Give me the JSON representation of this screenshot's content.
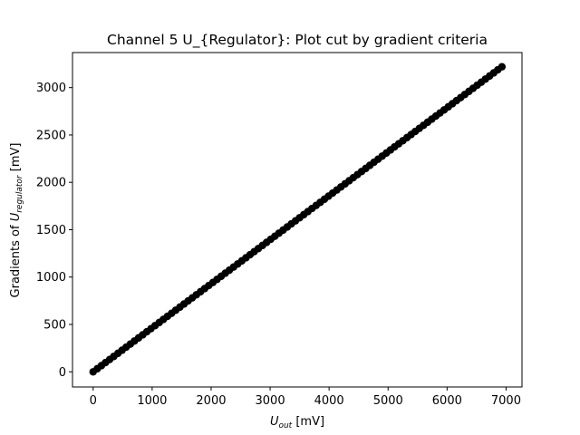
{
  "chart_data": {
    "type": "scatter",
    "title": "Channel 5 U_{Regulator}: Plot cut by gradient criteria",
    "xlabel": {
      "symbol": "U",
      "sub": "out",
      "unit": " [mV]"
    },
    "ylabel": {
      "prefix": "Gradients of ",
      "symbol": "U",
      "sub": "regulator",
      "unit": " [mV]"
    },
    "xlim": [
      -350,
      7270
    ],
    "ylim": [
      -160,
      3370
    ],
    "xticks": [
      0,
      1000,
      2000,
      3000,
      4000,
      5000,
      6000,
      7000
    ],
    "yticks": [
      0,
      500,
      1000,
      1500,
      2000,
      2500,
      3000
    ],
    "grid": false,
    "marker_color": "#000000",
    "line_color": "#000000",
    "series": [
      {
        "x_start": 0,
        "x_end": 6920,
        "x_step": 70,
        "y_start": 0,
        "y_end": 3220
      }
    ]
  }
}
